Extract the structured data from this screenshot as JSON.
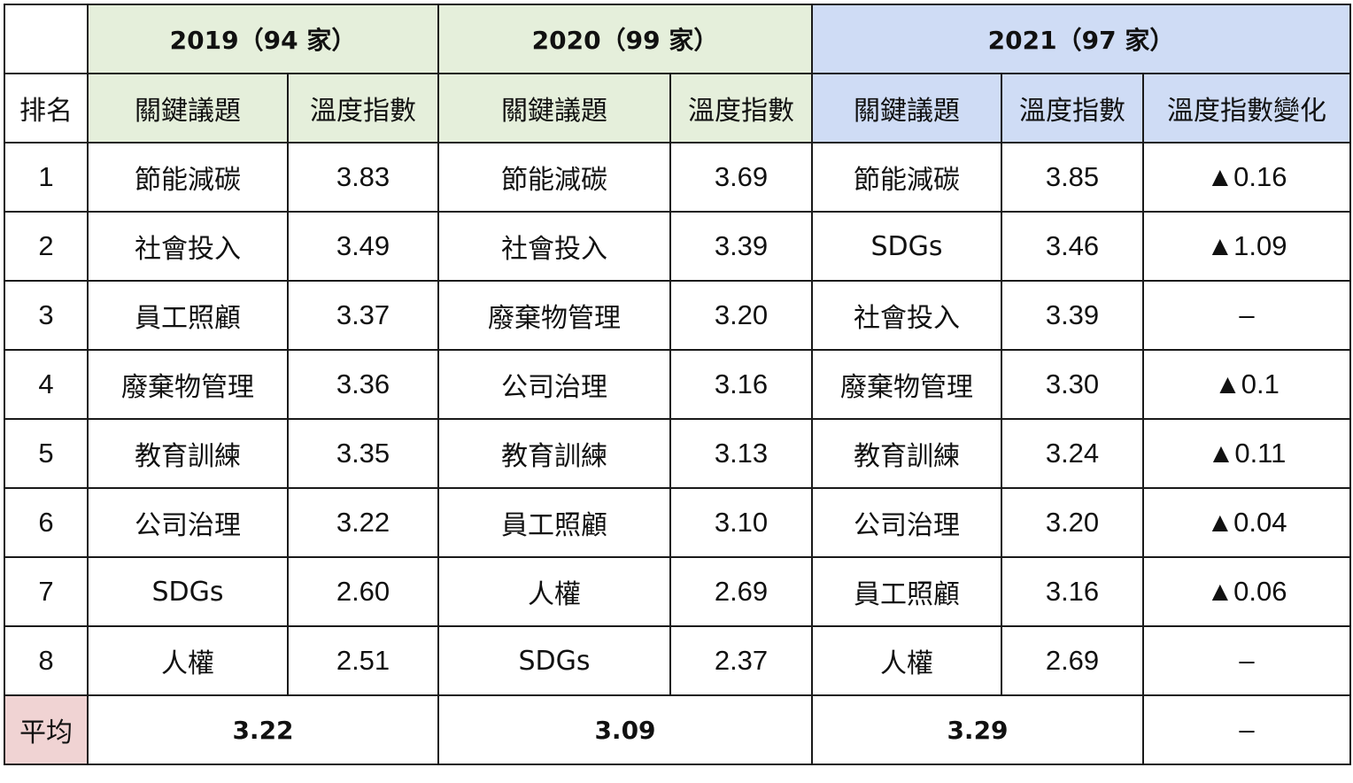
{
  "years": [
    {
      "label": "2019（94 家）"
    },
    {
      "label": "2020（99 家）"
    },
    {
      "label": "2021（97 家）"
    }
  ],
  "subheaders": {
    "rank": "排名",
    "topic": "關鍵議題",
    "index": "溫度指數",
    "change": "溫度指數變化"
  },
  "rows": [
    {
      "rank": "1",
      "t2019": "節能減碳",
      "i2019": "3.83",
      "t2020": "節能減碳",
      "i2020": "3.69",
      "t2021": "節能減碳",
      "i2021": "3.85",
      "change": "▲0.16"
    },
    {
      "rank": "2",
      "t2019": "社會投入",
      "i2019": "3.49",
      "t2020": "社會投入",
      "i2020": "3.39",
      "t2021": "SDGs",
      "i2021": "3.46",
      "change": "▲1.09"
    },
    {
      "rank": "3",
      "t2019": "員工照顧",
      "i2019": "3.37",
      "t2020": "廢棄物管理",
      "i2020": "3.20",
      "t2021": "社會投入",
      "i2021": "3.39",
      "change": "–"
    },
    {
      "rank": "4",
      "t2019": "廢棄物管理",
      "i2019": "3.36",
      "t2020": "公司治理",
      "i2020": "3.16",
      "t2021": "廢棄物管理",
      "i2021": "3.30",
      "change": "▲0.1"
    },
    {
      "rank": "5",
      "t2019": "教育訓練",
      "i2019": "3.35",
      "t2020": "教育訓練",
      "i2020": "3.13",
      "t2021": "教育訓練",
      "i2021": "3.24",
      "change": "▲0.11"
    },
    {
      "rank": "6",
      "t2019": "公司治理",
      "i2019": "3.22",
      "t2020": "員工照顧",
      "i2020": "3.10",
      "t2021": "公司治理",
      "i2021": "3.20",
      "change": "▲0.04"
    },
    {
      "rank": "7",
      "t2019": "SDGs",
      "i2019": "2.60",
      "t2020": "人權",
      "i2020": "2.69",
      "t2021": "員工照顧",
      "i2021": "3.16",
      "change": "▲0.06"
    },
    {
      "rank": "8",
      "t2019": "人權",
      "i2019": "2.51",
      "t2020": "SDGs",
      "i2020": "2.37",
      "t2021": "人權",
      "i2021": "2.69",
      "change": "–"
    }
  ],
  "average": {
    "label": "平均",
    "v2019": "3.22",
    "v2020": "3.09",
    "v2021": "3.29",
    "change": "–"
  },
  "colors": {
    "green_header": "#e5efdb",
    "blue_header": "#cfdcf5",
    "pink_header": "#f0d3d3"
  }
}
